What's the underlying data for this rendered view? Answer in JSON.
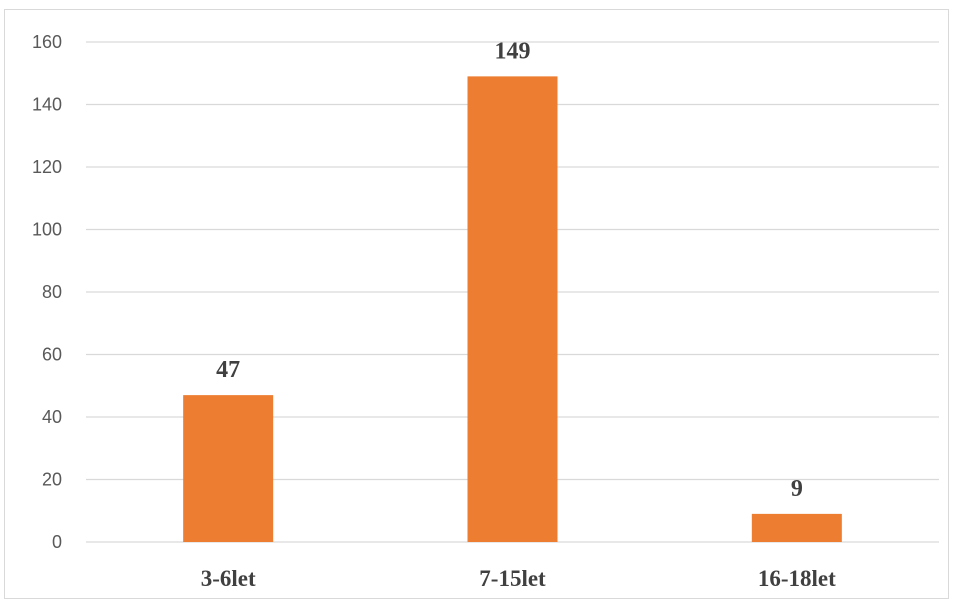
{
  "chart_data": {
    "type": "bar",
    "categories": [
      "3-6let",
      "7-15let",
      "16-18let"
    ],
    "values": [
      47,
      149,
      9
    ],
    "data_labels": [
      "47",
      "149",
      "9"
    ],
    "ylim": [
      0,
      160
    ],
    "yticks": [
      0,
      20,
      40,
      60,
      80,
      100,
      120,
      140,
      160
    ],
    "ytick_labels": [
      "0",
      "20",
      "40",
      "60",
      "80",
      "100",
      "120",
      "140",
      "160"
    ],
    "grid": true,
    "legend": "none",
    "colors": {
      "bar": "#ED7D31",
      "grid": "#D9D9D9",
      "tick_text": "#595959",
      "label_text": "#404040"
    }
  }
}
